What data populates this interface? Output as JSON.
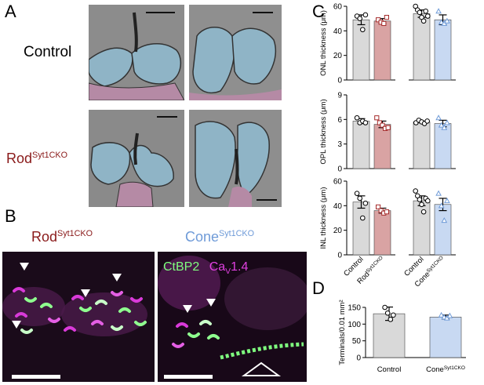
{
  "panels": {
    "A": {
      "letter": "A",
      "row_labels": {
        "control": "Control",
        "rod_prefix": "Rod",
        "rod_sup": "Syt1CKO"
      }
    },
    "B": {
      "letter": "B",
      "left_title_prefix": "Rod",
      "left_title_sup": "Syt1CKO",
      "right_title_prefix": "Cone",
      "right_title_sup": "Syt1CKO",
      "marker_green": "CtBP2",
      "marker_magenta_prefix": "Ca",
      "marker_magenta_sub": "V",
      "marker_magenta_suffix": "1.4"
    },
    "C": {
      "letter": "C"
    },
    "D": {
      "letter": "D"
    }
  },
  "colors": {
    "control_bar": "#d9d9d9",
    "rod_bar": "#d9a3a3",
    "cone_bar": "#c8d9f2",
    "rod_marker": "#a52a2a",
    "cone_marker": "#6f9bd8",
    "rod_text": "#8a1a1a",
    "cone_text": "#6f9bd8",
    "green": "#7fff7f",
    "magenta": "#e040e0"
  },
  "chart_data": [
    {
      "type": "bar",
      "ylabel": "ONL thickness (μm)",
      "ylim": [
        0,
        60
      ],
      "yticks": [
        0,
        20,
        40,
        60
      ],
      "groups": [
        {
          "series": [
            {
              "name": "Control",
              "value": 49,
              "sem": 4,
              "points": [
                52,
                50,
                41,
                53
              ],
              "marker": "circle",
              "color": "control"
            },
            {
              "name": "Rod",
              "value": 48,
              "sem": 2,
              "points": [
                49,
                47,
                46,
                51
              ],
              "marker": "square",
              "color": "rod"
            }
          ]
        },
        {
          "series": [
            {
              "name": "Control",
              "value": 54,
              "sem": 3,
              "points": [
                60,
                57,
                55,
                51,
                48,
                56,
                52
              ],
              "marker": "circle",
              "color": "control"
            },
            {
              "name": "Cone",
              "value": 49,
              "sem": 4,
              "points": [
                56,
                47,
                46,
                48
              ],
              "marker": "triangle",
              "color": "cone"
            }
          ]
        }
      ]
    },
    {
      "type": "bar",
      "ylabel": "OPL thickness (μm)",
      "ylim": [
        0,
        9
      ],
      "yticks": [
        0,
        3,
        6,
        9
      ],
      "groups": [
        {
          "series": [
            {
              "name": "Control",
              "value": 5.8,
              "sem": 0.3,
              "points": [
                6.2,
                5.6,
                5.8,
                5.6
              ],
              "marker": "circle",
              "color": "control"
            },
            {
              "name": "Rod",
              "value": 5.4,
              "sem": 0.4,
              "points": [
                6.2,
                5.6,
                5.3,
                4.9,
                5.0
              ],
              "marker": "square",
              "color": "rod"
            }
          ]
        },
        {
          "series": [
            {
              "name": "Control",
              "value": 5.7,
              "sem": 0.1,
              "points": [
                5.6,
                5.9,
                5.7,
                5.5,
                5.8
              ],
              "marker": "circle",
              "color": "control"
            },
            {
              "name": "Cone",
              "value": 5.5,
              "sem": 0.4,
              "points": [
                6.2,
                5.3,
                5.0,
                5.6
              ],
              "marker": "triangle",
              "color": "cone"
            }
          ]
        }
      ]
    },
    {
      "type": "bar",
      "ylabel": "INL thickness (μm)",
      "ylim": [
        0,
        60
      ],
      "yticks": [
        0,
        20,
        40,
        60
      ],
      "xticklabels": [
        {
          "text": "Control"
        },
        {
          "text": "Rod",
          "sup": "Syt1CKO"
        },
        {
          "text": "Control"
        },
        {
          "text": "Cone",
          "sup": "Syt1CKO"
        }
      ],
      "groups": [
        {
          "series": [
            {
              "name": "Control",
              "value": 43,
              "sem": 5,
              "points": [
                50,
                46,
                30,
                42
              ],
              "marker": "circle",
              "color": "control"
            },
            {
              "name": "Rod",
              "value": 36,
              "sem": 2,
              "points": [
                39,
                36,
                34,
                35
              ],
              "marker": "square",
              "color": "rod"
            }
          ]
        },
        {
          "series": [
            {
              "name": "Control",
              "value": 44,
              "sem": 4,
              "points": [
                52,
                48,
                45,
                41,
                35,
                46,
                44
              ],
              "marker": "circle",
              "color": "control"
            },
            {
              "name": "Cone",
              "value": 41,
              "sem": 5,
              "points": [
                50,
                40,
                28,
                44
              ],
              "marker": "triangle",
              "color": "cone"
            }
          ]
        }
      ]
    },
    {
      "type": "bar",
      "ylabel": "Terminals/0.01 mm²",
      "ylim": [
        0,
        150
      ],
      "yticks": [
        0,
        50,
        100,
        150
      ],
      "xticklabels": [
        {
          "text": "Control"
        },
        {
          "text": "Cone",
          "sup": "Syt1CKO"
        }
      ],
      "groups": [
        {
          "series": [
            {
              "name": "Control",
              "value": 131,
              "sem": 20,
              "points": [
                150,
                133,
                114,
                127
              ],
              "marker": "circle",
              "color": "control"
            },
            {
              "name": "Cone",
              "value": 121,
              "sem": 6,
              "points": [
                127,
                121,
                118,
                125
              ],
              "marker": "triangle",
              "color": "cone"
            }
          ]
        }
      ]
    }
  ]
}
